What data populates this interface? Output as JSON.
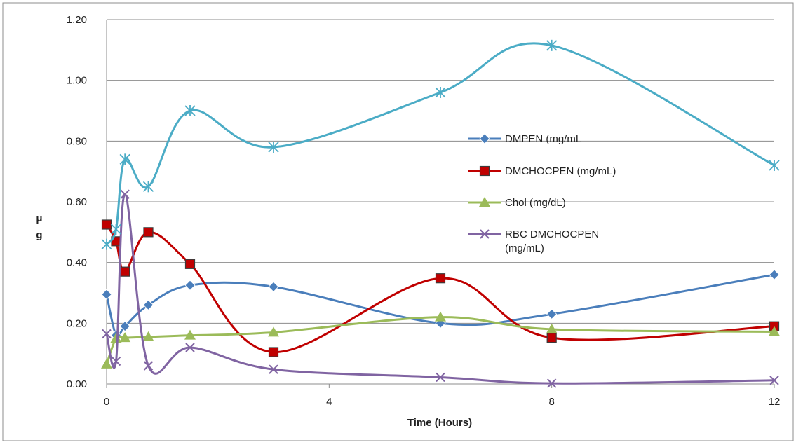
{
  "chart_data": {
    "type": "line",
    "title": "",
    "xlabel": "Time (Hours)",
    "ylabel": "μ g",
    "xlim": [
      0,
      12
    ],
    "ylim": [
      0,
      1.2
    ],
    "x_ticks": [
      0,
      4,
      8,
      12
    ],
    "y_ticks": [
      "0.00",
      "0.20",
      "0.40",
      "0.60",
      "0.80",
      "1.00",
      "1.20"
    ],
    "grid": true,
    "legend_position": "right",
    "series": [
      {
        "name": "DMPEN (mg/mL",
        "color": "#4a7ebb",
        "marker": "diamond",
        "x": [
          0,
          0.17,
          0.33,
          0.75,
          1.5,
          3,
          6,
          8,
          12
        ],
        "y": [
          0.295,
          0.16,
          0.19,
          0.26,
          0.325,
          0.32,
          0.2,
          0.23,
          0.36
        ]
      },
      {
        "name": "DMCHOCPEN (mg/mL)",
        "color": "#c00000",
        "marker": "square",
        "x": [
          0,
          0.17,
          0.33,
          0.75,
          1.5,
          3,
          6,
          8,
          12
        ],
        "y": [
          0.525,
          0.47,
          0.37,
          0.5,
          0.395,
          0.105,
          0.348,
          0.152,
          0.19
        ]
      },
      {
        "name": "Chol (mg/dL)",
        "color": "#9bbb59",
        "marker": "triangle",
        "x": [
          0,
          0.17,
          0.33,
          0.75,
          1.5,
          3,
          6,
          8,
          12
        ],
        "y": [
          0.065,
          0.15,
          0.152,
          0.155,
          0.16,
          0.17,
          0.22,
          0.18,
          0.172
        ]
      },
      {
        "name": "RBC DMCHOCPEN (mg/mL)",
        "name_line1": "RBC DMCHOCPEN",
        "name_line2": "(mg/mL)",
        "color": "#8064a2",
        "marker": "x",
        "x": [
          0,
          0.17,
          0.33,
          0.75,
          1.5,
          3,
          6,
          8,
          12
        ],
        "y": [
          0.165,
          0.075,
          0.625,
          0.06,
          0.12,
          0.048,
          0.022,
          0.002,
          0.012
        ]
      },
      {
        "name": "",
        "color": "#4bacc6",
        "marker": "star",
        "x": [
          0,
          0.17,
          0.33,
          0.75,
          1.5,
          3,
          6,
          8,
          12
        ],
        "y": [
          0.46,
          0.51,
          0.74,
          0.65,
          0.9,
          0.78,
          0.96,
          1.115,
          0.72
        ]
      }
    ]
  }
}
